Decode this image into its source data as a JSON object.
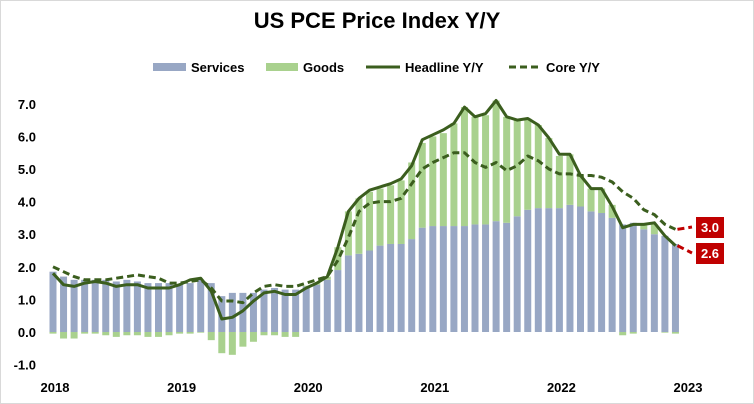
{
  "chart_data": {
    "type": "bar",
    "title": "US PCE Price Index Y/Y",
    "xlabel": "",
    "ylabel": "",
    "ylim": [
      -1.0,
      7.0
    ],
    "yticks": [
      "-1.0",
      "0.0",
      "1.0",
      "2.0",
      "3.0",
      "4.0",
      "5.0",
      "6.0",
      "7.0"
    ],
    "xticks": [
      "2018",
      "2019",
      "2020",
      "2021",
      "2022",
      "2023"
    ],
    "grid": false,
    "legend_placement": "top",
    "stacked": true,
    "colors": {
      "services": "#98a7c4",
      "goods": "#a9d18e",
      "headline": "#3b5e1e",
      "core": "#3b5e1e",
      "projection": "#c00000",
      "label_bg": "#c00000"
    },
    "series": [
      {
        "name": "Services",
        "kind": "bar",
        "values": [
          1.85,
          1.7,
          1.6,
          1.6,
          1.6,
          1.6,
          1.55,
          1.6,
          1.55,
          1.5,
          1.5,
          1.5,
          1.45,
          1.5,
          1.6,
          1.5,
          1.1,
          1.2,
          1.2,
          1.2,
          1.3,
          1.35,
          1.3,
          1.3,
          1.4,
          1.45,
          1.6,
          1.9,
          2.35,
          2.4,
          2.5,
          2.65,
          2.7,
          2.7,
          2.85,
          3.2,
          3.25,
          3.25,
          3.25,
          3.25,
          3.3,
          3.3,
          3.4,
          3.35,
          3.55,
          3.75,
          3.8,
          3.8,
          3.8,
          3.9,
          3.85,
          3.7,
          3.65,
          3.5,
          3.3,
          3.35,
          3.15,
          3.0,
          2.95,
          2.7
        ]
      },
      {
        "name": "Goods",
        "kind": "bar",
        "values": [
          -0.05,
          -0.2,
          -0.2,
          -0.05,
          -0.05,
          -0.1,
          -0.15,
          -0.1,
          -0.1,
          -0.15,
          -0.15,
          -0.1,
          -0.05,
          -0.05,
          -0.02,
          -0.25,
          -0.65,
          -0.7,
          -0.45,
          -0.3,
          -0.1,
          -0.1,
          -0.15,
          -0.15,
          0.02,
          0.05,
          0.1,
          0.7,
          1.35,
          1.7,
          1.8,
          1.75,
          1.8,
          1.95,
          2.35,
          2.6,
          2.75,
          2.85,
          3.15,
          3.65,
          3.3,
          3.35,
          3.7,
          3.25,
          2.95,
          2.8,
          2.55,
          2.15,
          1.6,
          1.55,
          0.95,
          0.7,
          0.75,
          0.4,
          -0.1,
          -0.05,
          0.15,
          0.3,
          -0.02,
          -0.05
        ]
      },
      {
        "name": "Headline Y/Y",
        "kind": "line",
        "values": [
          1.8,
          1.45,
          1.4,
          1.5,
          1.55,
          1.5,
          1.4,
          1.45,
          1.45,
          1.35,
          1.35,
          1.35,
          1.45,
          1.6,
          1.65,
          1.25,
          0.4,
          0.45,
          0.65,
          0.95,
          1.2,
          1.25,
          1.15,
          1.15,
          1.35,
          1.5,
          1.7,
          2.6,
          3.7,
          4.1,
          4.35,
          4.45,
          4.55,
          4.7,
          5.1,
          5.9,
          6.05,
          6.2,
          6.4,
          6.9,
          6.6,
          6.7,
          7.1,
          6.6,
          6.5,
          6.55,
          6.35,
          5.95,
          5.45,
          5.45,
          4.8,
          4.4,
          4.4,
          3.85,
          3.2,
          3.3,
          3.3,
          3.35,
          2.95,
          2.65
        ]
      },
      {
        "name": "Core Y/Y",
        "kind": "dashed-line",
        "values": [
          2.0,
          1.85,
          1.7,
          1.6,
          1.6,
          1.6,
          1.65,
          1.7,
          1.75,
          1.7,
          1.65,
          1.5,
          1.5,
          1.55,
          1.6,
          1.35,
          0.95,
          0.95,
          0.9,
          1.2,
          1.4,
          1.45,
          1.4,
          1.4,
          1.5,
          1.6,
          1.7,
          2.2,
          2.9,
          3.7,
          3.95,
          4.0,
          4.0,
          4.1,
          4.55,
          5.0,
          5.2,
          5.35,
          5.5,
          5.5,
          5.2,
          5.05,
          5.2,
          4.95,
          5.1,
          5.4,
          5.25,
          5.0,
          4.85,
          4.85,
          4.8,
          4.8,
          4.75,
          4.6,
          4.3,
          4.1,
          3.75,
          3.6,
          3.3,
          3.15
        ]
      }
    ],
    "annotations": [
      {
        "series": "Core Y/Y",
        "text": "3.0",
        "value": 3.0
      },
      {
        "series": "Headline Y/Y",
        "text": "2.6",
        "value": 2.6
      }
    ]
  }
}
